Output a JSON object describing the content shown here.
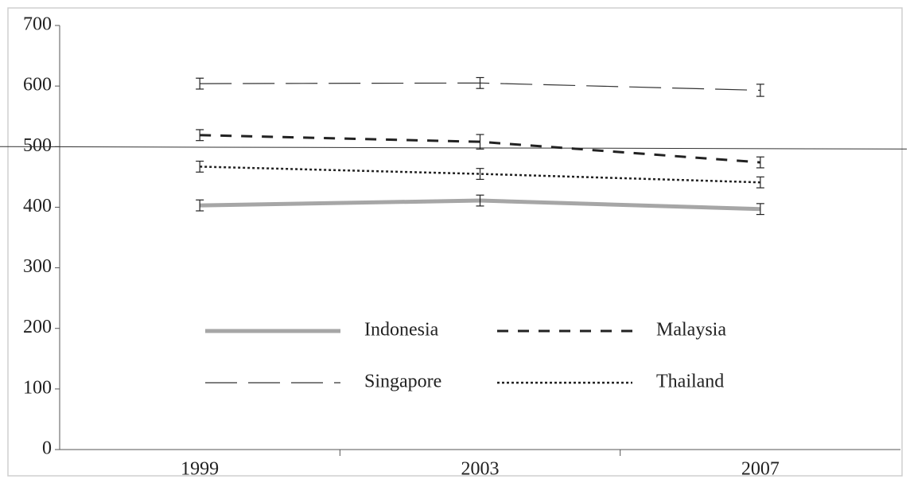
{
  "chart_data": {
    "type": "line",
    "categories": [
      "1999",
      "2003",
      "2007"
    ],
    "series": [
      {
        "name": "Indonesia",
        "color": "#a6a6a6",
        "width": 5,
        "dash": "solid",
        "values": [
          403,
          411,
          397
        ],
        "errors": [
          9,
          9,
          9
        ]
      },
      {
        "name": "Malaysia",
        "color": "#222222",
        "width": 3,
        "dash": "dashed",
        "values": [
          519,
          508,
          474
        ],
        "errors": [
          9,
          12,
          9
        ]
      },
      {
        "name": "Singapore",
        "color": "#333333",
        "width": 1.2,
        "dash": "longdash",
        "values": [
          604,
          605,
          593
        ],
        "errors": [
          9,
          9,
          10
        ]
      },
      {
        "name": "Thailand",
        "color": "#222222",
        "width": 2.5,
        "dash": "dotted",
        "values": [
          467,
          455,
          441
        ],
        "errors": [
          9,
          9,
          9
        ]
      }
    ],
    "reference_line": 500,
    "ylim": [
      0,
      700
    ],
    "yticks": [
      0,
      100,
      200,
      300,
      400,
      500,
      600,
      700
    ],
    "grid": false
  }
}
